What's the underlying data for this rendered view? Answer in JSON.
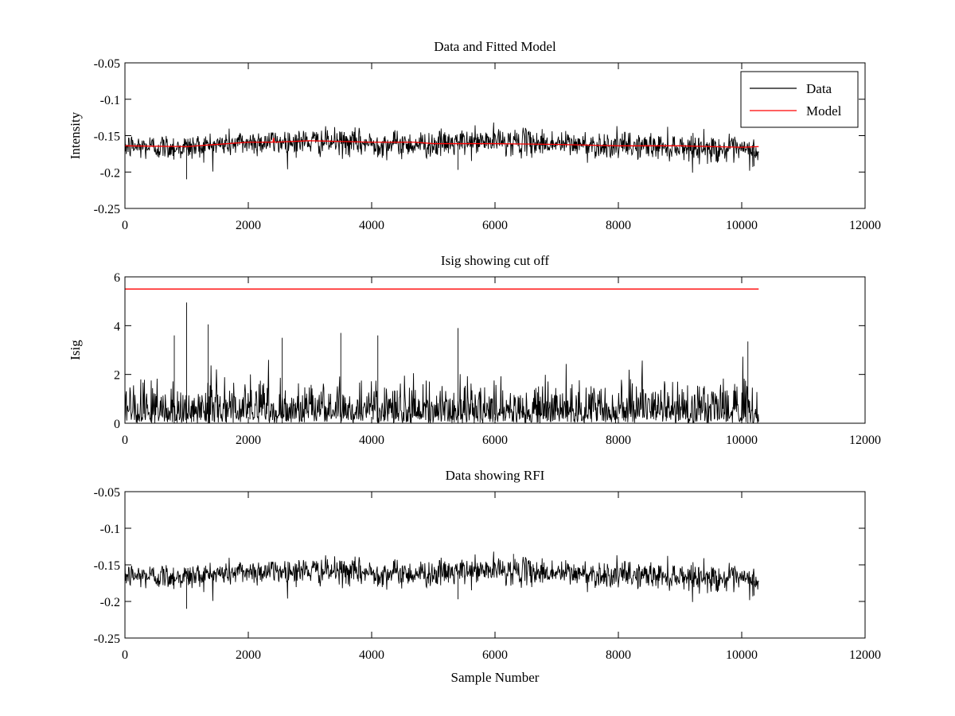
{
  "chart_data": [
    {
      "type": "line",
      "title": "Data and Fitted Model",
      "xlabel": "",
      "ylabel": "Intensity",
      "xlim": [
        0,
        12000
      ],
      "ylim": [
        -0.25,
        -0.05
      ],
      "y_reversed": true,
      "grid": false,
      "legend_position": "top-right",
      "xticks": [
        "0",
        "2000",
        "4000",
        "6000",
        "8000",
        "10000",
        "12000"
      ],
      "yticks": [
        "-0.05",
        "-0.1",
        "-0.15",
        "-0.2",
        "-0.25"
      ],
      "series": [
        {
          "name": "Data",
          "color": "#000000",
          "kind": "noisy",
          "n_samples": 10275,
          "baseline": {
            "x": [
              0,
              1000,
              2000,
              3000,
              4000,
              5000,
              6000,
              7000,
              8000,
              9000,
              10275
            ],
            "y": [
              -0.165,
              -0.166,
              -0.159,
              -0.158,
              -0.161,
              -0.162,
              -0.157,
              -0.161,
              -0.164,
              -0.165,
              -0.172
            ]
          },
          "noise_sd": 0.009,
          "spikes": [
            {
              "x": 1000,
              "y": -0.21
            },
            {
              "x": 5400,
              "y": -0.197
            },
            {
              "x": 10200,
              "y": -0.192
            }
          ]
        },
        {
          "name": "Model",
          "color": "#ff0000",
          "kind": "line",
          "x": [
            0,
            1000,
            2000,
            2400,
            2410,
            2420,
            3000,
            4000,
            4700,
            5000,
            6000,
            7000,
            8000,
            9000,
            10000,
            10275
          ],
          "y": [
            -0.164,
            -0.165,
            -0.159,
            -0.159,
            -0.153,
            -0.159,
            -0.157,
            -0.159,
            -0.159,
            -0.161,
            -0.161,
            -0.162,
            -0.164,
            -0.164,
            -0.166,
            -0.165
          ]
        }
      ]
    },
    {
      "type": "line",
      "title": "Isig showing cut off",
      "xlabel": "",
      "ylabel": "Isig",
      "xlim": [
        0,
        12000
      ],
      "ylim": [
        0,
        6
      ],
      "y_reversed": false,
      "grid": false,
      "xticks": [
        "0",
        "2000",
        "4000",
        "6000",
        "8000",
        "10000",
        "12000"
      ],
      "yticks": [
        "0",
        "2",
        "4",
        "6"
      ],
      "series": [
        {
          "color": "#000000",
          "kind": "abs-noise",
          "n_samples": 10275,
          "scale": 0.8,
          "spikes": [
            {
              "x": 1000,
              "y": 4.95
            },
            {
              "x": 1350,
              "y": 4.05
            },
            {
              "x": 3500,
              "y": 3.7
            },
            {
              "x": 5400,
              "y": 3.9
            },
            {
              "x": 2550,
              "y": 3.5
            },
            {
              "x": 4100,
              "y": 3.6
            },
            {
              "x": 10100,
              "y": 3.35
            },
            {
              "x": 800,
              "y": 3.6
            }
          ]
        },
        {
          "color": "#ff0000",
          "kind": "line",
          "x": [
            0,
            10275
          ],
          "y": [
            5.5,
            5.5
          ]
        }
      ]
    },
    {
      "type": "line",
      "title": "Data showing RFI",
      "xlabel": "Sample Number",
      "ylabel": "",
      "xlim": [
        0,
        12000
      ],
      "ylim": [
        -0.25,
        -0.05
      ],
      "y_reversed": true,
      "grid": false,
      "xticks": [
        "0",
        "2000",
        "4000",
        "6000",
        "8000",
        "10000",
        "12000"
      ],
      "yticks": [
        "-0.05",
        "-0.1",
        "-0.15",
        "-0.2",
        "-0.25"
      ],
      "series": [
        {
          "color": "#000000",
          "kind": "noisy",
          "n_samples": 10275,
          "baseline": {
            "x": [
              0,
              1000,
              2000,
              3000,
              4000,
              5000,
              6000,
              7000,
              8000,
              9000,
              10275
            ],
            "y": [
              -0.165,
              -0.166,
              -0.159,
              -0.158,
              -0.161,
              -0.162,
              -0.157,
              -0.161,
              -0.164,
              -0.165,
              -0.172
            ]
          },
          "noise_sd": 0.009,
          "spikes": [
            {
              "x": 1000,
              "y": -0.21
            },
            {
              "x": 5400,
              "y": -0.197
            },
            {
              "x": 6300,
              "y": -0.135
            },
            {
              "x": 10200,
              "y": -0.192
            }
          ]
        }
      ]
    }
  ]
}
